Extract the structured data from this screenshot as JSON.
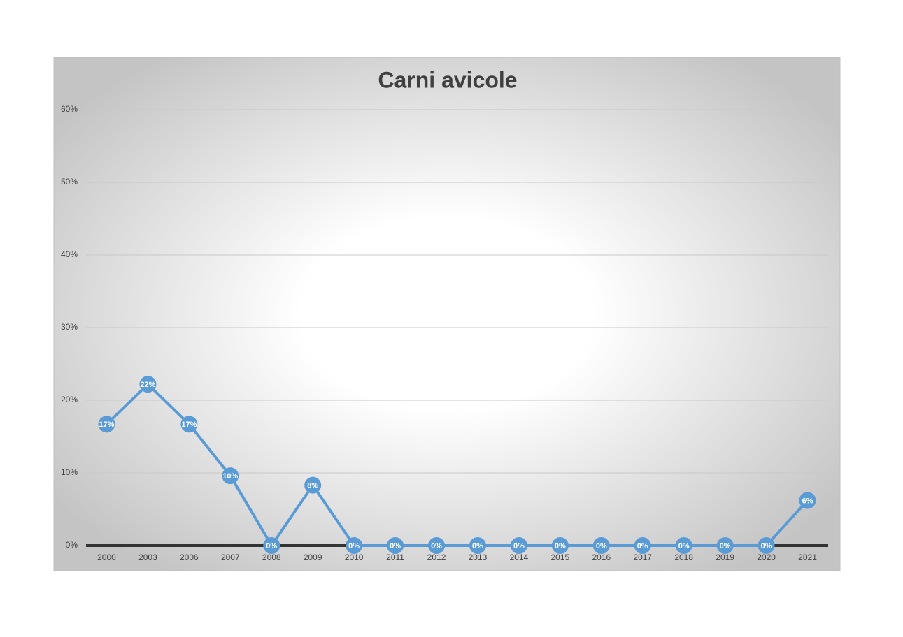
{
  "chart_data": {
    "type": "line",
    "title": "Carni avicole",
    "categories": [
      "2000",
      "2003",
      "2006",
      "2007",
      "2008",
      "2009",
      "2010",
      "2011",
      "2012",
      "2013",
      "2014",
      "2015",
      "2016",
      "2017",
      "2018",
      "2019",
      "2020",
      "2021"
    ],
    "series": [
      {
        "name": "Carni avicole",
        "color": "#5b9bd5",
        "values": [
          16.7,
          22.2,
          16.7,
          9.6,
          0,
          8.3,
          0,
          0,
          0,
          0,
          0,
          0,
          0,
          0,
          0,
          0,
          0,
          6.2
        ],
        "value_labels": [
          "17%",
          "22%",
          "17%",
          "10%",
          "0%",
          "8%",
          "0%",
          "0%",
          "0%",
          "0%",
          "0%",
          "0%",
          "0%",
          "0%",
          "0%",
          "0%",
          "0%",
          "6%"
        ]
      }
    ],
    "ylim": [
      0,
      60
    ],
    "yticks": [
      {
        "value": 0,
        "label": "0%"
      },
      {
        "value": 10,
        "label": "10%"
      },
      {
        "value": 20,
        "label": "20%"
      },
      {
        "value": 30,
        "label": "30%"
      },
      {
        "value": 40,
        "label": "40%"
      },
      {
        "value": 50,
        "label": "50%"
      },
      {
        "value": 60,
        "label": "60%"
      }
    ],
    "grid": true
  }
}
